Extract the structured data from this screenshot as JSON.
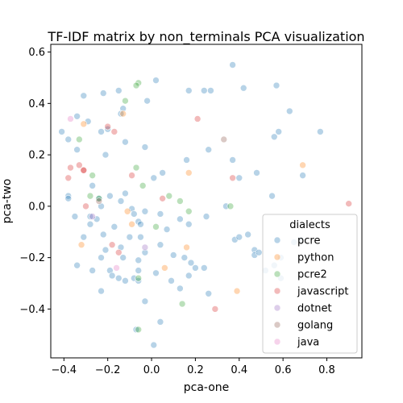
{
  "chart_data": {
    "type": "scatter",
    "title": "TF-IDF matrix by non_terminals PCA visualization",
    "xlabel": "pca-one",
    "ylabel": "pca-two",
    "xlim": [
      -0.46,
      0.96
    ],
    "ylim": [
      -0.59,
      0.63
    ],
    "xticks": [
      -0.4,
      -0.2,
      0.0,
      0.2,
      0.4,
      0.6,
      0.8
    ],
    "xtick_labels": [
      "−0.4",
      "−0.2",
      "0.0",
      "0.2",
      "0.4",
      "0.6",
      "0.8"
    ],
    "yticks": [
      -0.4,
      -0.2,
      0.0,
      0.2,
      0.4,
      0.6
    ],
    "ytick_labels": [
      "−0.4",
      "−0.2",
      "0.0",
      "0.2",
      "0.4",
      "0.6"
    ],
    "grid": false,
    "legend_title": "dialects",
    "legend_position": "lower-right",
    "series": [
      {
        "name": "pcre",
        "color": "#1f77b4",
        "points": [
          [
            -0.31,
            0.43
          ],
          [
            -0.22,
            0.44
          ],
          [
            -0.15,
            0.45
          ],
          [
            -0.13,
            0.38
          ],
          [
            -0.14,
            0.36
          ],
          [
            -0.02,
            0.41
          ],
          [
            0.02,
            0.49
          ],
          [
            0.17,
            0.45
          ],
          [
            0.24,
            0.45
          ],
          [
            0.27,
            0.45
          ],
          [
            0.37,
            0.55
          ],
          [
            0.42,
            0.46
          ],
          [
            0.57,
            0.47
          ],
          [
            0.63,
            0.37
          ],
          [
            0.58,
            0.29
          ],
          [
            0.56,
            0.27
          ],
          [
            0.77,
            0.29
          ],
          [
            0.69,
            0.12
          ],
          [
            -0.41,
            0.29
          ],
          [
            -0.38,
            0.26
          ],
          [
            -0.34,
            0.35
          ],
          [
            -0.34,
            0.22
          ],
          [
            -0.29,
            0.33
          ],
          [
            -0.23,
            0.29
          ],
          [
            -0.21,
            0.2
          ],
          [
            -0.2,
            0.3
          ],
          [
            -0.12,
            0.25
          ],
          [
            -0.03,
            0.23
          ],
          [
            0.05,
            0.13
          ],
          [
            0.01,
            0.11
          ],
          [
            0.16,
            0.18
          ],
          [
            0.26,
            0.22
          ],
          [
            0.37,
            0.18
          ],
          [
            0.4,
            0.11
          ],
          [
            0.48,
            0.13
          ],
          [
            0.55,
            0.04
          ],
          [
            -0.38,
            0.04
          ],
          [
            -0.38,
            0.03
          ],
          [
            -0.27,
            0.08
          ],
          [
            -0.24,
            0.03
          ],
          [
            -0.23,
            0.0
          ],
          [
            -0.19,
            0.04
          ],
          [
            -0.14,
            0.02
          ],
          [
            -0.12,
            0.05
          ],
          [
            -0.09,
            -0.01
          ],
          [
            -0.08,
            -0.03
          ],
          [
            -0.06,
            -0.06
          ],
          [
            -0.05,
            -0.07
          ],
          [
            -0.03,
            -0.02
          ],
          [
            0.04,
            -0.03
          ],
          [
            0.07,
            -0.09
          ],
          [
            0.13,
            -0.05
          ],
          [
            0.17,
            -0.07
          ],
          [
            0.25,
            -0.04
          ],
          [
            0.34,
            0.0
          ],
          [
            -0.35,
            -0.04
          ],
          [
            -0.31,
            -0.12
          ],
          [
            -0.28,
            -0.04
          ],
          [
            -0.28,
            -0.07
          ],
          [
            -0.25,
            -0.05
          ],
          [
            -0.22,
            -0.11
          ],
          [
            -0.21,
            -0.17
          ],
          [
            -0.17,
            -0.08
          ],
          [
            -0.14,
            -0.16
          ],
          [
            -0.13,
            -0.2
          ],
          [
            -0.1,
            -0.12
          ],
          [
            -0.05,
            -0.12
          ],
          [
            -0.06,
            -0.21
          ],
          [
            -0.03,
            -0.18
          ],
          [
            0.04,
            -0.15
          ],
          [
            0.1,
            -0.19
          ],
          [
            0.15,
            -0.2
          ],
          [
            0.18,
            -0.22
          ],
          [
            0.2,
            -0.24
          ],
          [
            0.24,
            -0.24
          ],
          [
            0.38,
            -0.13
          ],
          [
            0.4,
            -0.12
          ],
          [
            0.44,
            -0.11
          ],
          [
            0.47,
            -0.17
          ],
          [
            0.47,
            -0.19
          ],
          [
            0.49,
            -0.18
          ],
          [
            0.52,
            -0.25
          ],
          [
            0.56,
            -0.23
          ],
          [
            0.59,
            -0.2
          ],
          [
            0.59,
            -0.28
          ],
          [
            0.65,
            -0.14
          ],
          [
            0.68,
            -0.13
          ],
          [
            -0.34,
            -0.23
          ],
          [
            -0.27,
            -0.25
          ],
          [
            -0.23,
            -0.33
          ],
          [
            -0.23,
            -0.2
          ],
          [
            -0.19,
            -0.25
          ],
          [
            -0.18,
            -0.27
          ],
          [
            -0.15,
            -0.28
          ],
          [
            -0.12,
            -0.29
          ],
          [
            -0.08,
            -0.28
          ],
          [
            -0.06,
            -0.29
          ],
          [
            -0.06,
            -0.25
          ],
          [
            -0.03,
            -0.37
          ],
          [
            0.02,
            -0.26
          ],
          [
            0.09,
            -0.29
          ],
          [
            0.13,
            -0.32
          ],
          [
            0.17,
            -0.27
          ],
          [
            0.26,
            -0.34
          ],
          [
            -0.07,
            -0.48
          ],
          [
            0.04,
            -0.45
          ],
          [
            0.01,
            -0.54
          ]
        ]
      },
      {
        "name": "python",
        "color": "#ff7f0e",
        "points": [
          [
            -0.31,
            0.32
          ],
          [
            -0.13,
            0.36
          ],
          [
            -0.11,
            -0.02
          ],
          [
            -0.09,
            -0.07
          ],
          [
            -0.32,
            -0.15
          ],
          [
            0.06,
            -0.24
          ],
          [
            0.16,
            -0.16
          ],
          [
            0.17,
            0.13
          ],
          [
            0.39,
            -0.33
          ],
          [
            0.69,
            0.16
          ]
        ]
      },
      {
        "name": "pcre2",
        "color": "#2ca02c",
        "points": [
          [
            -0.12,
            0.41
          ],
          [
            -0.06,
            0.48
          ],
          [
            -0.07,
            0.47
          ],
          [
            -0.33,
            0.26
          ],
          [
            -0.27,
            0.12
          ],
          [
            -0.24,
            0.03
          ],
          [
            -0.28,
            0.04
          ],
          [
            -0.07,
            0.15
          ],
          [
            -0.04,
            0.08
          ],
          [
            0.08,
            0.04
          ],
          [
            0.13,
            0.02
          ],
          [
            0.17,
            -0.02
          ],
          [
            0.02,
            -0.08
          ],
          [
            0.14,
            -0.38
          ],
          [
            -0.06,
            -0.48
          ],
          [
            -0.06,
            -0.28
          ],
          [
            0.36,
            0.0
          ]
        ]
      },
      {
        "name": "javascript",
        "color": "#d62728",
        "points": [
          [
            -0.31,
            0.14
          ],
          [
            -0.33,
            0.16
          ],
          [
            -0.31,
            0.14
          ],
          [
            -0.37,
            0.15
          ],
          [
            -0.38,
            0.11
          ],
          [
            -0.2,
            0.31
          ],
          [
            -0.17,
            0.29
          ],
          [
            -0.09,
            0.12
          ],
          [
            0.05,
            0.03
          ],
          [
            0.21,
            0.34
          ],
          [
            0.37,
            0.11
          ],
          [
            0.9,
            0.01
          ],
          [
            -0.3,
            0.0
          ],
          [
            -0.18,
            -0.15
          ],
          [
            -0.15,
            -0.18
          ],
          [
            0.29,
            -0.4
          ]
        ]
      },
      {
        "name": "dotnet",
        "color": "#9467bd",
        "points": [
          [
            -0.27,
            -0.04
          ],
          [
            -0.03,
            -0.16
          ]
        ]
      },
      {
        "name": "golang",
        "color": "#8c564b",
        "points": [
          [
            0.33,
            0.26
          ],
          [
            -0.24,
            0.02
          ]
        ]
      },
      {
        "name": "java",
        "color": "#e377c2",
        "points": [
          [
            -0.37,
            0.34
          ],
          [
            -0.16,
            -0.24
          ]
        ]
      }
    ]
  }
}
